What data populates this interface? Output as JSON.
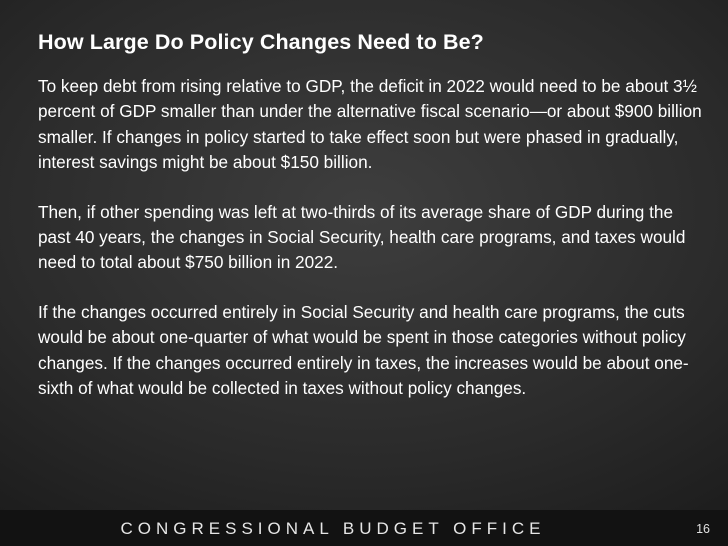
{
  "slide": {
    "title": "How Large Do Policy Changes Need to Be?",
    "paragraphs": [
      "To keep debt from rising relative to GDP, the deficit in 2022 would need to be about 3½ percent of GDP smaller than under the alternative fiscal scenario—or about $900 billion smaller. If changes in policy started to take effect soon but were phased in gradually, interest savings might be about $150 billion.",
      "Then, if other spending was left at two-thirds of its average share of GDP during the past 40 years, the changes in Social Security, health care programs, and taxes would need to total about $750 billion in 2022.",
      "If the changes occurred entirely in Social Security and health care programs, the cuts would be about one-quarter of what would be spent in those categories without policy changes. If the changes occurred entirely in taxes, the increases would be about one-sixth of what would be collected in taxes without policy changes."
    ],
    "footer": "CONGRESSIONAL BUDGET OFFICE",
    "page_number": "16"
  }
}
